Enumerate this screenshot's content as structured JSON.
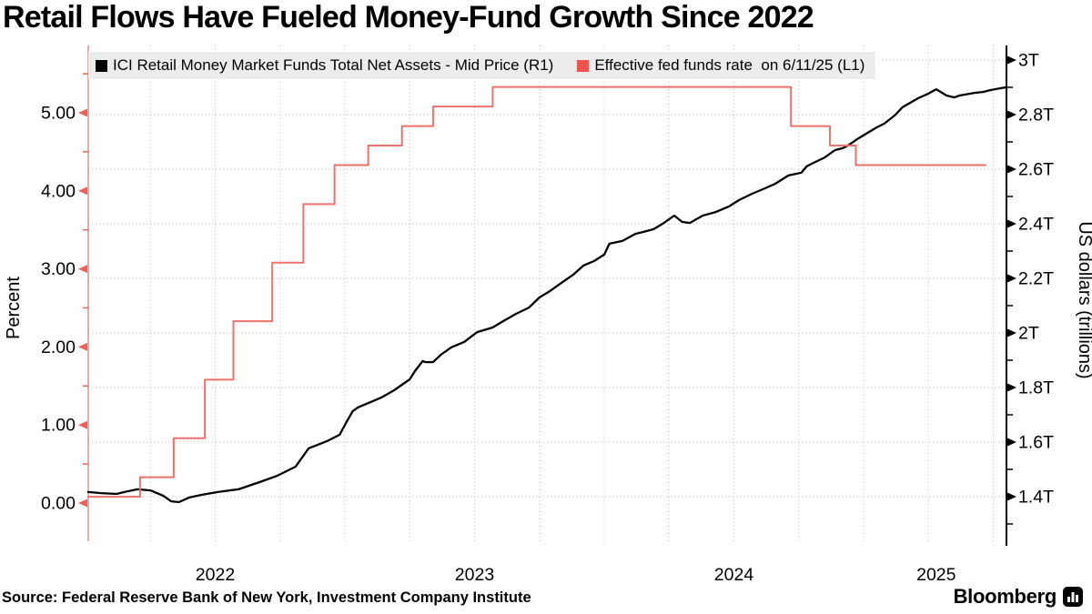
{
  "title": "Retail Flows Have Fueled Money-Fund Growth Since 2022",
  "source": "Source: Federal Reserve Bank of New York, Investment Company Institute",
  "branding": {
    "wordmark": "Bloomberg",
    "icon": "bloomberg-bars-icon"
  },
  "legend": [
    {
      "label": "ICI Retail Money Market Funds Total Net Assets - Mid Price (R1)",
      "color": "#000000"
    },
    {
      "label": "Effective fed funds rate  on 6/11/25 (L1)",
      "color": "#f2544d"
    }
  ],
  "colors": {
    "fed_line": "#ee716b",
    "assets_line": "#000000",
    "left_spine": "#dd9b97",
    "left_tick": "#e9625c",
    "right_spine": "#000000",
    "gridline": "#bcbcbc",
    "legend_bg": "#ececec"
  },
  "chart_data": {
    "type": "line",
    "title": "Retail Flows Have Fueled Money-Fund Growth Since 2022",
    "x_axis": {
      "tick_labels": [
        "2022",
        "2023",
        "2024",
        "2025"
      ],
      "tick_center_years": [
        2022.5,
        2023.5,
        2024.5,
        2025.28
      ],
      "range_years": [
        2022.0,
        2025.55
      ],
      "minor_grid": "quarterly"
    },
    "left_axis": {
      "label": "Percent",
      "tick_labels": [
        "0.00",
        "1.00",
        "2.00",
        "3.00",
        "4.00",
        "5.00"
      ],
      "tick_values": [
        0,
        1,
        2,
        3,
        4,
        5
      ],
      "minor_step": 0.5,
      "range": [
        -0.52,
        5.9
      ]
    },
    "right_axis": {
      "label": "US dollars (trillions)",
      "tick_labels": [
        "1.4T",
        "1.6T",
        "1.8T",
        "2T",
        "2.2T",
        "2.4T",
        "2.6T",
        "2.8T",
        "3T"
      ],
      "tick_values": [
        1.4,
        1.6,
        1.8,
        2.0,
        2.2,
        2.4,
        2.6,
        2.8,
        3.0
      ],
      "minor_step": 0.1,
      "range": [
        1.23,
        3.05
      ]
    },
    "grid": {
      "horizontal_at_T": [
        1.4,
        1.6,
        1.8,
        2.0,
        2.2,
        2.4,
        2.6,
        2.8,
        3.0
      ],
      "vertical": "quarterly",
      "style": "dotted"
    },
    "series": [
      {
        "name": "ICI Retail Money Market Funds Total Net Assets - Mid Price (R1)",
        "axis": "right",
        "units": "trillions USD",
        "draw": "line",
        "color": "#000000",
        "points": [
          [
            2022.01,
            1.417
          ],
          [
            2022.06,
            1.413
          ],
          [
            2022.12,
            1.41
          ],
          [
            2022.15,
            1.417
          ],
          [
            2022.2,
            1.427
          ],
          [
            2022.25,
            1.423
          ],
          [
            2022.3,
            1.403
          ],
          [
            2022.33,
            1.383
          ],
          [
            2022.36,
            1.38
          ],
          [
            2022.4,
            1.397
          ],
          [
            2022.45,
            1.407
          ],
          [
            2022.51,
            1.417
          ],
          [
            2022.59,
            1.427
          ],
          [
            2022.67,
            1.453
          ],
          [
            2022.74,
            1.477
          ],
          [
            2022.81,
            1.51
          ],
          [
            2022.86,
            1.577
          ],
          [
            2022.93,
            1.603
          ],
          [
            2022.98,
            1.627
          ],
          [
            2023.0,
            1.663
          ],
          [
            2023.03,
            1.713
          ],
          [
            2023.05,
            1.727
          ],
          [
            2023.1,
            1.747
          ],
          [
            2023.14,
            1.763
          ],
          [
            2023.19,
            1.79
          ],
          [
            2023.25,
            1.83
          ],
          [
            2023.27,
            1.86
          ],
          [
            2023.3,
            1.897
          ],
          [
            2023.31,
            1.893
          ],
          [
            2023.34,
            1.893
          ],
          [
            2023.37,
            1.92
          ],
          [
            2023.41,
            1.947
          ],
          [
            2023.46,
            1.967
          ],
          [
            2023.51,
            2.003
          ],
          [
            2023.57,
            2.02
          ],
          [
            2023.61,
            2.043
          ],
          [
            2023.66,
            2.07
          ],
          [
            2023.71,
            2.093
          ],
          [
            2023.75,
            2.13
          ],
          [
            2023.79,
            2.153
          ],
          [
            2023.84,
            2.187
          ],
          [
            2023.88,
            2.213
          ],
          [
            2023.92,
            2.247
          ],
          [
            2023.96,
            2.263
          ],
          [
            2024.0,
            2.287
          ],
          [
            2024.02,
            2.327
          ],
          [
            2024.07,
            2.337
          ],
          [
            2024.12,
            2.363
          ],
          [
            2024.15,
            2.37
          ],
          [
            2024.19,
            2.38
          ],
          [
            2024.23,
            2.403
          ],
          [
            2024.27,
            2.43
          ],
          [
            2024.3,
            2.407
          ],
          [
            2024.33,
            2.403
          ],
          [
            2024.38,
            2.43
          ],
          [
            2024.43,
            2.443
          ],
          [
            2024.48,
            2.463
          ],
          [
            2024.52,
            2.487
          ],
          [
            2024.57,
            2.51
          ],
          [
            2024.62,
            2.53
          ],
          [
            2024.66,
            2.547
          ],
          [
            2024.71,
            2.577
          ],
          [
            2024.76,
            2.587
          ],
          [
            2024.78,
            2.61
          ],
          [
            2024.8,
            2.62
          ],
          [
            2024.85,
            2.643
          ],
          [
            2024.89,
            2.67
          ],
          [
            2024.92,
            2.677
          ],
          [
            2024.94,
            2.687
          ],
          [
            2024.98,
            2.713
          ],
          [
            2025.01,
            2.73
          ],
          [
            2025.05,
            2.753
          ],
          [
            2025.08,
            2.767
          ],
          [
            2025.12,
            2.797
          ],
          [
            2025.15,
            2.827
          ],
          [
            2025.21,
            2.86
          ],
          [
            2025.25,
            2.877
          ],
          [
            2025.28,
            2.893
          ],
          [
            2025.32,
            2.87
          ],
          [
            2025.35,
            2.863
          ],
          [
            2025.37,
            2.87
          ],
          [
            2025.43,
            2.88
          ],
          [
            2025.46,
            2.883
          ],
          [
            2025.49,
            2.89
          ],
          [
            2025.53,
            2.897
          ],
          [
            2025.55,
            2.9
          ]
        ]
      },
      {
        "name": "Effective fed funds rate  on 6/11/25 (L1)",
        "axis": "left",
        "units": "percent",
        "draw": "step-after",
        "color": "#ee716b",
        "points": [
          [
            2022.01,
            0.08
          ],
          [
            2022.21,
            0.33
          ],
          [
            2022.34,
            0.83
          ],
          [
            2022.46,
            1.58
          ],
          [
            2022.57,
            2.33
          ],
          [
            2022.72,
            3.08
          ],
          [
            2022.84,
            3.83
          ],
          [
            2022.96,
            4.33
          ],
          [
            2023.09,
            4.58
          ],
          [
            2023.22,
            4.83
          ],
          [
            2023.34,
            5.08
          ],
          [
            2023.57,
            5.33
          ],
          [
            2024.72,
            4.83
          ],
          [
            2024.87,
            4.58
          ],
          [
            2024.97,
            4.33
          ],
          [
            2025.47,
            4.33
          ]
        ]
      }
    ]
  }
}
